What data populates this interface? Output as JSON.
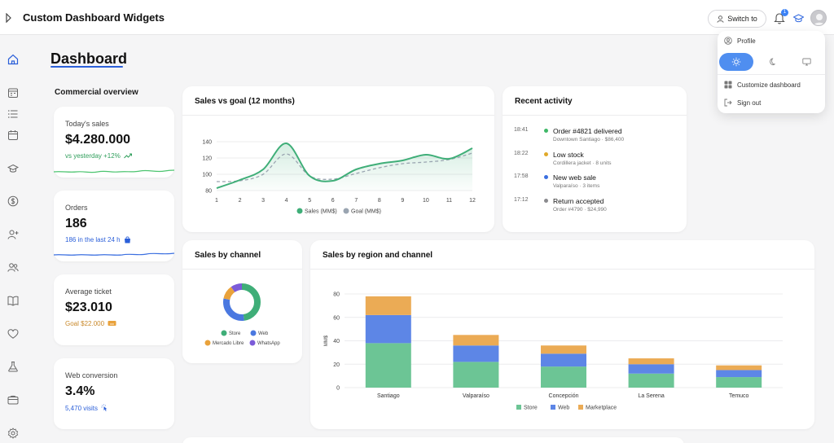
{
  "app": {
    "title": "Custom Dashboard Widgets"
  },
  "topbar": {
    "switch_label": "Switch to",
    "notification_count": "1"
  },
  "page": {
    "title": "Dashboard",
    "section_label": "Commercial overview"
  },
  "kpis": [
    {
      "label": "Today's sales",
      "value": "$4.280.000",
      "sub": "vs yesterday +12%",
      "sub_color": "#2f9e5b",
      "spark_color": "#4cc46f"
    },
    {
      "label": "Orders",
      "value": "186",
      "sub": "186 in the last 24 h",
      "sub_color": "#2b5fd9",
      "spark_color": "#3b6fe0"
    },
    {
      "label": "Average ticket",
      "value": "$23.010",
      "sub": "Goal $22.000",
      "sub_color": "#c9892a"
    },
    {
      "label": "Web conversion",
      "value": "3.4%",
      "sub": "5,470 visits",
      "sub_color": "#2b5fd9"
    }
  ],
  "sales_goal": {
    "title": "Sales vs goal (12 months)"
  },
  "recent": {
    "title": "Recent activity",
    "items": [
      {
        "time": "18:41",
        "title": "Order #4821 delivered",
        "sub": "Downtown Santiago · $86,400",
        "dot": "#3fb867"
      },
      {
        "time": "18:22",
        "title": "Low stock",
        "sub": "Cordillera jacket · 8 units",
        "dot": "#e0a92a"
      },
      {
        "time": "17:58",
        "title": "New web sale",
        "sub": "Valparaíso · 3 items",
        "dot": "#3b6fe0"
      },
      {
        "time": "17:12",
        "title": "Return accepted",
        "sub": "Order #4790 · $24,990",
        "dot": "#8a8a8e"
      }
    ]
  },
  "channel": {
    "title": "Sales by channel"
  },
  "region": {
    "title": "Sales by region and channel"
  },
  "menu": {
    "profile": "Profile",
    "customize": "Customize dashboard",
    "sign_out": "Sign out",
    "selected_theme": "light"
  },
  "chart_data": [
    {
      "type": "line",
      "x": [
        1,
        2,
        3,
        4,
        5,
        6,
        7,
        8,
        9,
        10,
        11,
        12
      ],
      "series": [
        {
          "name": "Sales (MM$)",
          "values": [
            83,
            93,
            106,
            138,
            98,
            92,
            106,
            113,
            117,
            124,
            119,
            132
          ],
          "color": "#3fae78"
        },
        {
          "name": "Goal (MM$)",
          "values": [
            91,
            92,
            100,
            125,
            98,
            94,
            101,
            108,
            113,
            115,
            118,
            126
          ],
          "color": "#9aa5b1"
        }
      ],
      "ylim": [
        80,
        140
      ],
      "yticks": [
        80,
        100,
        120,
        140
      ]
    },
    {
      "type": "pie",
      "donut": true,
      "series": [
        {
          "name": "Store",
          "value": 48,
          "color": "#3fae78"
        },
        {
          "name": "Web",
          "value": 30,
          "color": "#4a78e0"
        },
        {
          "name": "Mercado Libre",
          "value": 12,
          "color": "#e9a23b"
        },
        {
          "name": "WhatsApp",
          "value": 10,
          "color": "#7b5bd8"
        }
      ]
    },
    {
      "type": "bar",
      "stacked": true,
      "categories": [
        "Santiago",
        "Valparaíso",
        "Concepción",
        "La Serena",
        "Temuco"
      ],
      "series": [
        {
          "name": "Store",
          "values": [
            38,
            22,
            18,
            12,
            9
          ],
          "color": "#6cc595"
        },
        {
          "name": "Web",
          "values": [
            24,
            14,
            11,
            8,
            6
          ],
          "color": "#5d86e6"
        },
        {
          "name": "Marketplace",
          "values": [
            16,
            9,
            7,
            5,
            4
          ],
          "color": "#ebab55"
        }
      ],
      "ylabel": "MM$",
      "ylim": [
        0,
        80
      ],
      "yticks": [
        0,
        20,
        40,
        60,
        80
      ]
    }
  ]
}
